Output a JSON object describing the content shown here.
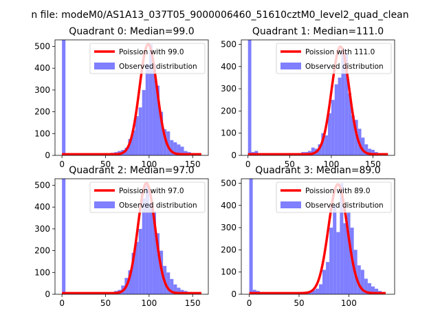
{
  "figure": {
    "suptitle": "n file: modeM0/AS1A13_037T05_9000006460_51610cztM0_level2_quad_clean"
  },
  "chart_data": [
    {
      "type": "histogram",
      "title": "Quadrant 0: Median=99.0",
      "xlim": [
        -8,
        168
      ],
      "ylim": [
        0,
        530
      ],
      "xticks": [
        0,
        50,
        100,
        150
      ],
      "yticks": [
        0,
        100,
        200,
        300,
        400,
        500
      ],
      "legend_placement": "top-right",
      "bin_width": 4,
      "bins": [
        {
          "x0": 0,
          "height": 530
        },
        {
          "x0": 48,
          "height": 4
        },
        {
          "x0": 52,
          "height": 8
        },
        {
          "x0": 56,
          "height": 12
        },
        {
          "x0": 60,
          "height": 15
        },
        {
          "x0": 64,
          "height": 20
        },
        {
          "x0": 68,
          "height": 25
        },
        {
          "x0": 72,
          "height": 35
        },
        {
          "x0": 76,
          "height": 75
        },
        {
          "x0": 80,
          "height": 115
        },
        {
          "x0": 84,
          "height": 180
        },
        {
          "x0": 88,
          "height": 220
        },
        {
          "x0": 92,
          "height": 300
        },
        {
          "x0": 96,
          "height": 420
        },
        {
          "x0": 100,
          "height": 510
        },
        {
          "x0": 104,
          "height": 420
        },
        {
          "x0": 108,
          "height": 320
        },
        {
          "x0": 112,
          "height": 200
        },
        {
          "x0": 116,
          "height": 120
        },
        {
          "x0": 120,
          "height": 110
        },
        {
          "x0": 124,
          "height": 70
        },
        {
          "x0": 128,
          "height": 60
        },
        {
          "x0": 132,
          "height": 50
        },
        {
          "x0": 136,
          "height": 40
        },
        {
          "x0": 140,
          "height": 20
        },
        {
          "x0": 144,
          "height": 15
        },
        {
          "x0": 148,
          "height": 10
        },
        {
          "x0": 152,
          "height": 8
        },
        {
          "x0": 156,
          "height": 5
        }
      ],
      "curve": {
        "mean": 99.0,
        "peak": 510,
        "x_range": [
          0,
          160
        ],
        "tail": 5
      },
      "legend": [
        {
          "label": "Poission with 99.0",
          "kind": "line",
          "color": "#ff0000"
        },
        {
          "label": "Observed distribution",
          "kind": "patch",
          "color": "#7f7fff"
        }
      ]
    },
    {
      "type": "histogram",
      "title": "Quadrant 1: Median=111.0",
      "xlim": [
        -8,
        176
      ],
      "ylim": [
        0,
        520
      ],
      "xticks": [
        0,
        50,
        100,
        150
      ],
      "yticks": [
        0,
        100,
        200,
        300,
        400,
        500
      ],
      "legend_placement": "top-right",
      "bin_width": 4,
      "bins": [
        {
          "x0": 0,
          "height": 520
        },
        {
          "x0": 4,
          "height": 15
        },
        {
          "x0": 8,
          "height": 20
        },
        {
          "x0": 12,
          "height": 10
        },
        {
          "x0": 56,
          "height": 5
        },
        {
          "x0": 60,
          "height": 10
        },
        {
          "x0": 64,
          "height": 15
        },
        {
          "x0": 68,
          "height": 15
        },
        {
          "x0": 72,
          "height": 20
        },
        {
          "x0": 76,
          "height": 35
        },
        {
          "x0": 80,
          "height": 30
        },
        {
          "x0": 84,
          "height": 50
        },
        {
          "x0": 88,
          "height": 100
        },
        {
          "x0": 92,
          "height": 90
        },
        {
          "x0": 96,
          "height": 190
        },
        {
          "x0": 100,
          "height": 250
        },
        {
          "x0": 104,
          "height": 320
        },
        {
          "x0": 108,
          "height": 350
        },
        {
          "x0": 112,
          "height": 480
        },
        {
          "x0": 116,
          "height": 460
        },
        {
          "x0": 120,
          "height": 280
        },
        {
          "x0": 124,
          "height": 180
        },
        {
          "x0": 128,
          "height": 160
        },
        {
          "x0": 132,
          "height": 120
        },
        {
          "x0": 136,
          "height": 80
        },
        {
          "x0": 140,
          "height": 50
        },
        {
          "x0": 144,
          "height": 30
        },
        {
          "x0": 148,
          "height": 25
        },
        {
          "x0": 152,
          "height": 15
        },
        {
          "x0": 156,
          "height": 10
        },
        {
          "x0": 160,
          "height": 5
        }
      ],
      "curve": {
        "mean": 111.0,
        "peak": 490,
        "x_range": [
          0,
          168
        ],
        "tail": 5
      },
      "legend": [
        {
          "label": "Poission with 111.0",
          "kind": "line",
          "color": "#ff0000"
        },
        {
          "label": "Observed distribution",
          "kind": "patch",
          "color": "#7f7fff"
        }
      ]
    },
    {
      "type": "histogram",
      "title": "Quadrant 2: Median=97.0",
      "xlim": [
        -8,
        168
      ],
      "ylim": [
        0,
        530
      ],
      "xticks": [
        0,
        50,
        100,
        150
      ],
      "yticks": [
        0,
        100,
        200,
        300,
        400,
        500
      ],
      "legend_placement": "top-right",
      "bin_width": 4,
      "bins": [
        {
          "x0": 0,
          "height": 530
        },
        {
          "x0": 52,
          "height": 5
        },
        {
          "x0": 56,
          "height": 10
        },
        {
          "x0": 60,
          "height": 15
        },
        {
          "x0": 64,
          "height": 20
        },
        {
          "x0": 68,
          "height": 40
        },
        {
          "x0": 72,
          "height": 75
        },
        {
          "x0": 76,
          "height": 110
        },
        {
          "x0": 80,
          "height": 190
        },
        {
          "x0": 84,
          "height": 240
        },
        {
          "x0": 88,
          "height": 300
        },
        {
          "x0": 92,
          "height": 440
        },
        {
          "x0": 96,
          "height": 500
        },
        {
          "x0": 100,
          "height": 420
        },
        {
          "x0": 104,
          "height": 380
        },
        {
          "x0": 108,
          "height": 280
        },
        {
          "x0": 112,
          "height": 200
        },
        {
          "x0": 116,
          "height": 130
        },
        {
          "x0": 120,
          "height": 100
        },
        {
          "x0": 124,
          "height": 70
        },
        {
          "x0": 128,
          "height": 45
        },
        {
          "x0": 132,
          "height": 30
        },
        {
          "x0": 136,
          "height": 20
        },
        {
          "x0": 140,
          "height": 15
        },
        {
          "x0": 144,
          "height": 10
        },
        {
          "x0": 148,
          "height": 8
        },
        {
          "x0": 152,
          "height": 5
        },
        {
          "x0": 156,
          "height": 4
        }
      ],
      "curve": {
        "mean": 97.0,
        "peak": 510,
        "x_range": [
          0,
          160
        ],
        "tail": 5
      },
      "legend": [
        {
          "label": "Poission with 97.0",
          "kind": "line",
          "color": "#ff0000"
        },
        {
          "label": "Observed distribution",
          "kind": "patch",
          "color": "#7f7fff"
        }
      ]
    },
    {
      "type": "histogram",
      "title": "Quadrant 3: Median=89.0",
      "xlim": [
        -8,
        146
      ],
      "ylim": [
        0,
        520
      ],
      "xticks": [
        0,
        50,
        100
      ],
      "yticks": [
        0,
        100,
        200,
        300,
        400,
        500
      ],
      "legend_placement": "top-right",
      "bin_width": 3.5,
      "bins": [
        {
          "x0": 0,
          "height": 520
        },
        {
          "x0": 3.5,
          "height": 20
        },
        {
          "x0": 7,
          "height": 15
        },
        {
          "x0": 52.5,
          "height": 5
        },
        {
          "x0": 56,
          "height": 8
        },
        {
          "x0": 59.5,
          "height": 12
        },
        {
          "x0": 63,
          "height": 18
        },
        {
          "x0": 66.5,
          "height": 25
        },
        {
          "x0": 70,
          "height": 45
        },
        {
          "x0": 73.5,
          "height": 110
        },
        {
          "x0": 77,
          "height": 145
        },
        {
          "x0": 80.5,
          "height": 300
        },
        {
          "x0": 84,
          "height": 400
        },
        {
          "x0": 87.5,
          "height": 280
        },
        {
          "x0": 91,
          "height": 500
        },
        {
          "x0": 94.5,
          "height": 320
        },
        {
          "x0": 98,
          "height": 370
        },
        {
          "x0": 101.5,
          "height": 300
        },
        {
          "x0": 105,
          "height": 200
        },
        {
          "x0": 108.5,
          "height": 130
        },
        {
          "x0": 112,
          "height": 110
        },
        {
          "x0": 115.5,
          "height": 70
        },
        {
          "x0": 119,
          "height": 50
        },
        {
          "x0": 122.5,
          "height": 35
        },
        {
          "x0": 126,
          "height": 25
        },
        {
          "x0": 129.5,
          "height": 15
        },
        {
          "x0": 133,
          "height": 8
        }
      ],
      "curve": {
        "mean": 89.0,
        "peak": 495,
        "x_range": [
          0,
          137
        ],
        "tail": 5
      },
      "legend": [
        {
          "label": "Poission with 89.0",
          "kind": "line",
          "color": "#ff0000"
        },
        {
          "label": "Observed distribution",
          "kind": "patch",
          "color": "#7f7fff"
        }
      ]
    }
  ]
}
